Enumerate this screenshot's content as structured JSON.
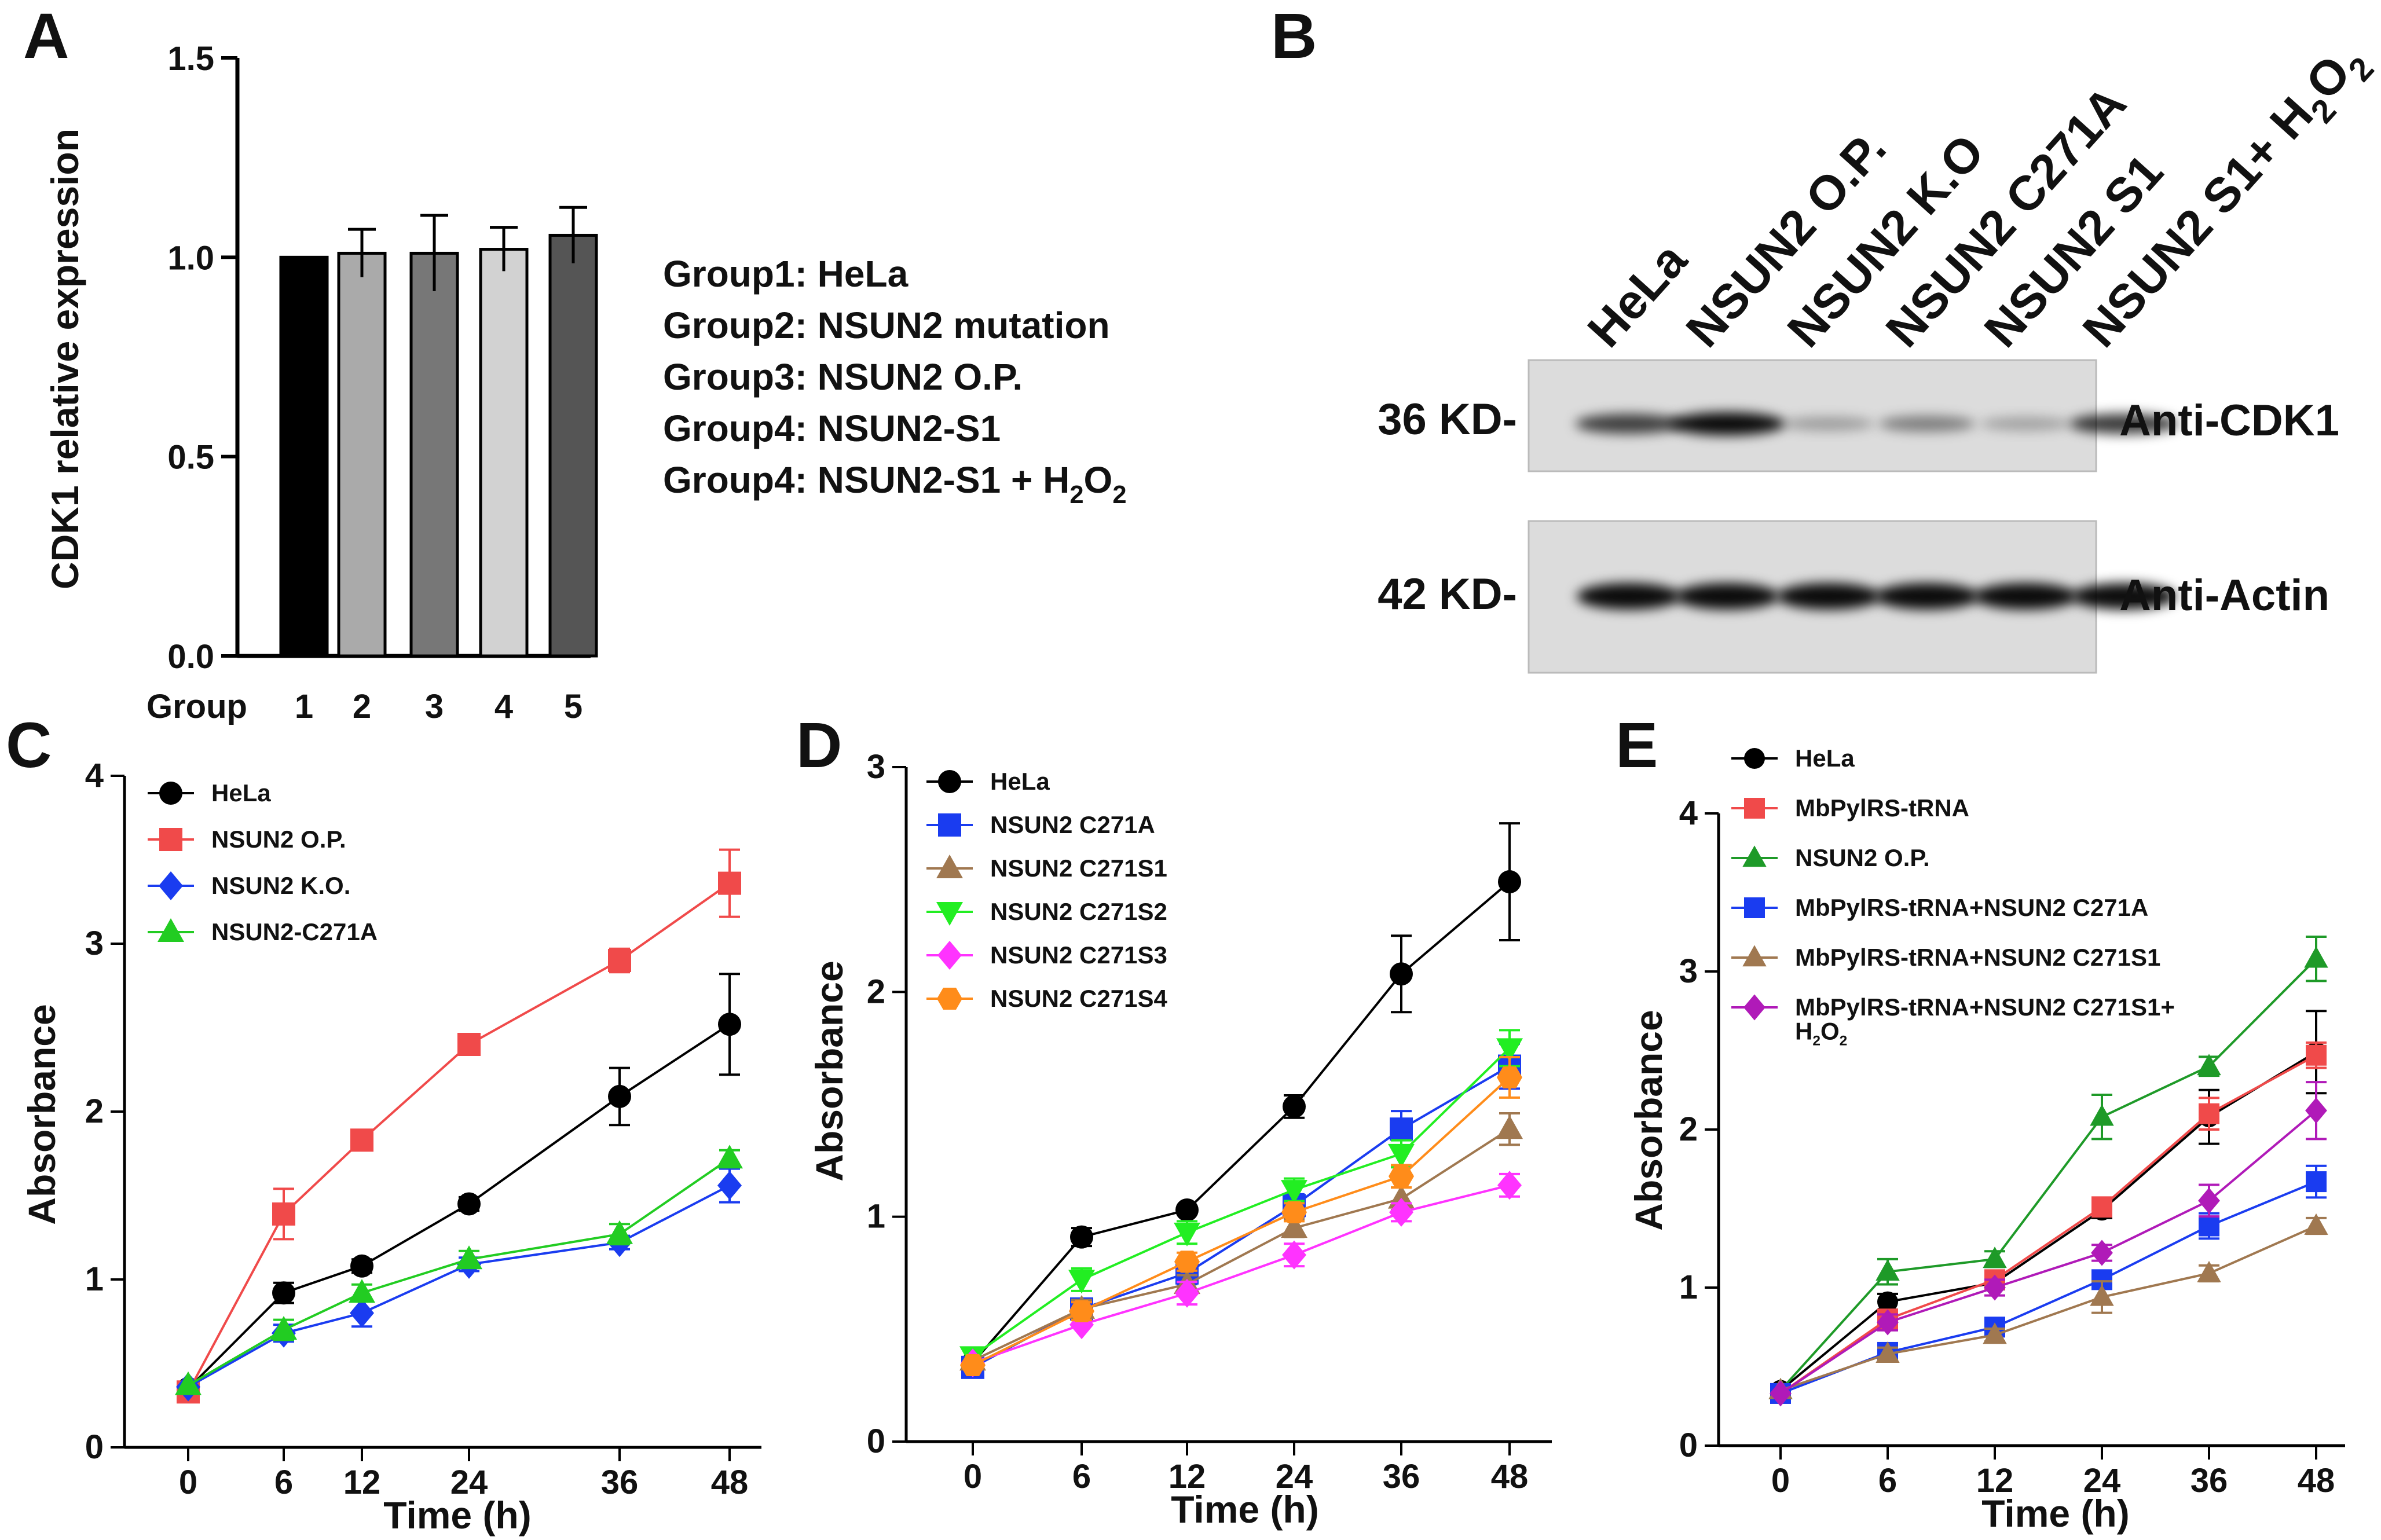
{
  "panel_labels": {
    "a": "A",
    "b": "B",
    "c": "C",
    "d": "D",
    "e": "E"
  },
  "panel_a": {
    "group_legend": [
      {
        "prefix": "Group1: HeLa",
        "sub1": "",
        "mid": "",
        "sub2": ""
      },
      {
        "prefix": "Group2: NSUN2 mutation",
        "sub1": "",
        "mid": "",
        "sub2": ""
      },
      {
        "prefix": "Group3: NSUN2 O.P.",
        "sub1": "",
        "mid": "",
        "sub2": ""
      },
      {
        "prefix": "Group4: NSUN2-S1",
        "sub1": "",
        "mid": "",
        "sub2": ""
      },
      {
        "prefix": "Group4: NSUN2-S1 + H",
        "sub1": "2",
        "mid": "O",
        "sub2": "2"
      }
    ],
    "bar_colors": [
      "#000000",
      "#aaaaaa",
      "#777777",
      "#d2d2d2",
      "#555555"
    ]
  },
  "panel_b": {
    "lanes": [
      {
        "text": "HeLa",
        "sub1": "",
        "mid": "",
        "sub2": ""
      },
      {
        "text": "NSUN2  O.P.",
        "sub1": "",
        "mid": "",
        "sub2": ""
      },
      {
        "text": "NSUN2  K.O",
        "sub1": "",
        "mid": "",
        "sub2": ""
      },
      {
        "text": "NSUN2  C271A",
        "sub1": "",
        "mid": "",
        "sub2": ""
      },
      {
        "text": "NSUN2  S1",
        "sub1": "",
        "mid": "",
        "sub2": ""
      },
      {
        "text": "NSUN2  S1+ H",
        "sub1": "2",
        "mid": "O",
        "sub2": "2"
      }
    ],
    "blots": [
      {
        "size_label": "36 KD-",
        "antibody": "Anti-CDK1",
        "band_intensity": [
          0.75,
          1.0,
          0.3,
          0.45,
          0.28,
          0.8
        ]
      },
      {
        "size_label": "42 KD-",
        "antibody": "Anti-Actin",
        "band_intensity": [
          1.0,
          1.0,
          1.0,
          1.0,
          1.0,
          1.0
        ]
      }
    ]
  },
  "chart_data": [
    {
      "id": "A",
      "type": "bar",
      "title": "",
      "xlabel": "Group",
      "ylabel": "CDK1 relative expression",
      "categories": [
        "1",
        "2",
        "3",
        "4",
        "5"
      ],
      "values": [
        1.0,
        1.01,
        1.01,
        1.02,
        1.055
      ],
      "errors": [
        0,
        0.06,
        0.095,
        0.055,
        0.07
      ],
      "ylim": [
        0,
        1.5
      ],
      "yticks": [
        "0.0",
        "0.5",
        "1.0",
        "1.5"
      ]
    },
    {
      "id": "C",
      "type": "line",
      "xlabel": "Time (h)",
      "ylabel": "Absorbance",
      "x": [
        "0",
        "6",
        "12",
        "24",
        "36",
        "48"
      ],
      "ylim": [
        0,
        4
      ],
      "yticks": [
        "0",
        "1",
        "2",
        "3",
        "4"
      ],
      "series": [
        {
          "name": "HeLa",
          "color": "#000000",
          "marker": "circle",
          "values": [
            0.35,
            0.92,
            1.08,
            1.45,
            2.09,
            2.52
          ],
          "errors": [
            0.03,
            0.06,
            0.04,
            0.04,
            0.17,
            0.3
          ]
        },
        {
          "name": "NSUN2 O.P.",
          "color": "#f04a4a",
          "marker": "square",
          "values": [
            0.33,
            1.39,
            1.83,
            2.4,
            2.9,
            3.36
          ],
          "errors": [
            0.03,
            0.15,
            0.05,
            0.05,
            0.07,
            0.2
          ]
        },
        {
          "name": "NSUN2 K.O.",
          "color": "#1a3cf0",
          "marker": "diamond",
          "values": [
            0.36,
            0.68,
            0.8,
            1.09,
            1.22,
            1.56
          ],
          "errors": [
            0.03,
            0.05,
            0.08,
            0.04,
            0.04,
            0.1
          ]
        },
        {
          "name": "NSUN2-C271A",
          "color": "#22cc22",
          "marker": "triangle",
          "values": [
            0.37,
            0.7,
            0.92,
            1.12,
            1.27,
            1.72
          ],
          "errors": [
            0.03,
            0.06,
            0.05,
            0.05,
            0.06,
            0.05
          ]
        }
      ]
    },
    {
      "id": "D",
      "type": "line",
      "xlabel": "Time (h)",
      "ylabel": "Absorbance",
      "x": [
        "0",
        "6",
        "12",
        "24",
        "36",
        "48"
      ],
      "ylim": [
        0,
        3
      ],
      "yticks": [
        "0",
        "1",
        "2",
        "3"
      ],
      "series": [
        {
          "name": "HeLa",
          "color": "#000000",
          "marker": "circle",
          "values": [
            0.35,
            0.91,
            1.03,
            1.49,
            2.08,
            2.49
          ],
          "errors": [
            0.03,
            0.04,
            0.03,
            0.05,
            0.17,
            0.26
          ]
        },
        {
          "name": "NSUN2 C271A",
          "color": "#1a3cf0",
          "marker": "square",
          "values": [
            0.33,
            0.59,
            0.75,
            1.05,
            1.39,
            1.67
          ],
          "errors": [
            0.03,
            0.04,
            0.05,
            0.05,
            0.08,
            0.1
          ]
        },
        {
          "name": "NSUN2 C271S1",
          "color": "#a07850",
          "marker": "triangle",
          "values": [
            0.36,
            0.59,
            0.7,
            0.95,
            1.08,
            1.39
          ],
          "errors": [
            0.03,
            0.04,
            0.04,
            0.04,
            0.05,
            0.07
          ]
        },
        {
          "name": "NSUN2 C271S2",
          "color": "#22ee22",
          "marker": "triangle-down",
          "values": [
            0.38,
            0.72,
            0.93,
            1.12,
            1.28,
            1.75
          ],
          "errors": [
            0.03,
            0.05,
            0.05,
            0.05,
            0.06,
            0.08
          ]
        },
        {
          "name": "NSUN2 C271S3",
          "color": "#ff33ff",
          "marker": "diamond",
          "values": [
            0.35,
            0.52,
            0.66,
            0.83,
            1.02,
            1.14
          ],
          "errors": [
            0.03,
            0.03,
            0.05,
            0.05,
            0.04,
            0.05
          ]
        },
        {
          "name": "NSUN2 C271S4",
          "color": "#ff8c1a",
          "marker": "hexagon",
          "values": [
            0.34,
            0.58,
            0.8,
            1.02,
            1.18,
            1.62
          ],
          "errors": [
            0.03,
            0.04,
            0.04,
            0.04,
            0.05,
            0.09
          ]
        }
      ],
      "legend_colors": [
        "#000000",
        "#1a3cf0",
        "#8b8b10",
        "#22cc22",
        "#cc22cc",
        "#d47a1a"
      ]
    },
    {
      "id": "E",
      "type": "line",
      "xlabel": "Time (h)",
      "ylabel": "Absorbance",
      "x": [
        "0",
        "6",
        "12",
        "24",
        "36",
        "48"
      ],
      "ylim": [
        0,
        4
      ],
      "yticks": [
        "0",
        "1",
        "2",
        "3",
        "4"
      ],
      "series": [
        {
          "name": "HeLa",
          "color": "#000000",
          "marker": "circle",
          "values": [
            0.35,
            0.91,
            1.03,
            1.49,
            2.08,
            2.49
          ],
          "errors": [
            0.03,
            0.05,
            0.04,
            0.05,
            0.17,
            0.26
          ]
        },
        {
          "name": "MbPylRS-tRNA",
          "color": "#f04a4a",
          "marker": "square",
          "values": [
            0.33,
            0.8,
            1.05,
            1.51,
            2.1,
            2.47
          ],
          "errors": [
            0.03,
            0.06,
            0.05,
            0.06,
            0.1,
            0.08
          ]
        },
        {
          "name": "NSUN2 O.P.",
          "color": "#1e9a28",
          "marker": "triangle",
          "values": [
            0.35,
            1.1,
            1.18,
            2.08,
            2.4,
            3.08
          ],
          "errors": [
            0.03,
            0.08,
            0.05,
            0.14,
            0.06,
            0.14
          ]
        },
        {
          "name": "MbPylRS-tRNA+NSUN2 C271A",
          "color": "#1a3cf0",
          "marker": "square",
          "values": [
            0.33,
            0.59,
            0.75,
            1.05,
            1.39,
            1.67
          ],
          "errors": [
            0.03,
            0.04,
            0.05,
            0.05,
            0.08,
            0.1
          ]
        },
        {
          "name": "MbPylRS-tRNA+NSUN2 C271S1",
          "color": "#a07850",
          "marker": "triangle",
          "values": [
            0.35,
            0.58,
            0.7,
            0.94,
            1.09,
            1.39
          ],
          "errors": [
            0.03,
            0.04,
            0.04,
            0.1,
            0.05,
            0.05
          ]
        },
        {
          "name": "MbPylRS-tRNA+NSUN2 C271S1+",
          "name_line2": "H",
          "sub1": "2",
          "mid": "O",
          "sub2": "2",
          "color": "#b01ab8",
          "marker": "diamond",
          "values": [
            0.33,
            0.78,
            1.0,
            1.22,
            1.55,
            2.12
          ],
          "errors": [
            0.03,
            0.05,
            0.05,
            0.05,
            0.1,
            0.18
          ]
        }
      ]
    }
  ]
}
